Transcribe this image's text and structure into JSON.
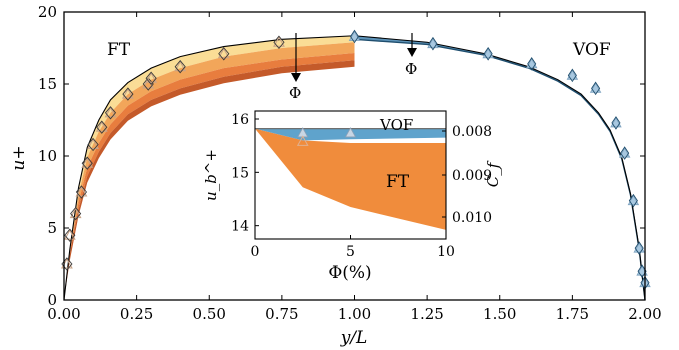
{
  "chart_data": [
    {
      "type": "line",
      "panel": "main",
      "xlabel": "y/L",
      "ylabel": "u+",
      "xlim": [
        0,
        2
      ],
      "ylim": [
        0,
        20
      ],
      "x_ticks": [
        "0.00",
        "0.25",
        "0.50",
        "0.75",
        "1.00",
        "1.25",
        "1.50",
        "1.75",
        "2.00"
      ],
      "y_ticks": [
        "0",
        "5",
        "10",
        "15",
        "20"
      ],
      "annotations": {
        "ft_label": "FT",
        "vof_label": "VOF",
        "phi_arrow_left": "Φ",
        "phi_arrow_right": "Φ"
      },
      "colors": {
        "ft_light": "#fadd96",
        "ft_mid": "#f2a65a",
        "ft_orange": "#e87d3e",
        "ft_dark": "#c45a2a",
        "vof_dark": "#1f4e6e",
        "vof_mid": "#5d93b8",
        "vof_light": "#a8c8e0",
        "single_phase": "#000000"
      },
      "x": [
        0.0,
        0.02,
        0.05,
        0.08,
        0.12,
        0.16,
        0.22,
        0.3,
        0.4,
        0.55,
        0.75,
        1.0
      ],
      "series": [
        {
          "values": [
            0.0,
            3.5,
            7.8,
            10.6,
            12.5,
            13.9,
            15.1,
            16.1,
            16.9,
            17.6,
            18.1,
            18.35
          ]
        },
        {
          "values": [
            0.0,
            3.4,
            7.3,
            9.9,
            11.7,
            13.0,
            14.3,
            15.3,
            16.1,
            16.9,
            17.5,
            17.9
          ]
        },
        {
          "values": [
            0.0,
            3.3,
            6.8,
            9.2,
            10.9,
            12.2,
            13.5,
            14.5,
            15.3,
            16.1,
            16.7,
            17.15
          ]
        },
        {
          "values": [
            0.0,
            3.2,
            6.3,
            8.6,
            10.3,
            11.6,
            12.9,
            13.9,
            14.7,
            15.5,
            16.2,
            16.65
          ]
        }
      ],
      "vof_x": [
        1.0,
        1.25,
        1.45,
        1.6,
        1.7,
        1.78,
        1.84,
        1.88,
        1.92,
        1.95,
        1.98,
        2.0
      ],
      "vof_series": [
        {
          "values": [
            18.35,
            17.9,
            17.1,
            16.2,
            15.3,
            14.3,
            13.0,
            11.8,
            9.9,
            7.4,
            3.6,
            0.0
          ]
        },
        {
          "values": [
            18.1,
            17.75,
            17.0,
            16.1,
            15.2,
            14.2,
            12.9,
            11.7,
            9.8,
            7.3,
            3.5,
            0.0
          ]
        }
      ],
      "ft_markers_x": [
        0.01,
        0.02,
        0.04,
        0.06,
        0.08,
        0.1,
        0.13,
        0.16,
        0.22,
        0.29,
        0.3,
        0.4,
        0.55,
        0.74
      ],
      "ft_markers_y": [
        2.5,
        4.5,
        6.0,
        7.5,
        9.5,
        10.8,
        12.0,
        13.0,
        14.3,
        15.0,
        15.4,
        16.2,
        17.1,
        17.9
      ],
      "vof_markers_x": [
        1.0,
        1.27,
        1.46,
        1.61,
        1.75,
        1.83,
        1.9,
        1.93,
        1.96,
        1.98,
        1.99,
        2.0
      ],
      "vof_markers_y": [
        18.3,
        17.8,
        17.1,
        16.4,
        15.6,
        14.7,
        12.3,
        10.2,
        6.9,
        3.6,
        2.0,
        1.2
      ]
    },
    {
      "type": "area",
      "panel": "inset",
      "xlabel": "Φ(%)",
      "ylabel": "u_b^+",
      "ylabel_right": "C_f",
      "xlim": [
        0,
        10
      ],
      "ylim": [
        13.75,
        16.15
      ],
      "x_ticks": [
        "0",
        "5",
        "10"
      ],
      "y_ticks": [
        "14",
        "15",
        "16"
      ],
      "y_right_ticks": [
        "0.008",
        "0.009",
        "0.010"
      ],
      "annotations": {
        "ft_label": "FT",
        "vof_label": "VOF"
      },
      "x": [
        0,
        2.5,
        5,
        10
      ],
      "series": [
        {
          "name": "FT",
          "upper": [
            15.82,
            15.6,
            15.55,
            15.55
          ],
          "lower": [
            15.82,
            14.72,
            14.35,
            13.92
          ]
        },
        {
          "name": "VOF",
          "upper": [
            15.82,
            15.82,
            15.82,
            15.82
          ],
          "lower": [
            15.82,
            15.6,
            15.62,
            15.65
          ]
        }
      ]
    }
  ]
}
